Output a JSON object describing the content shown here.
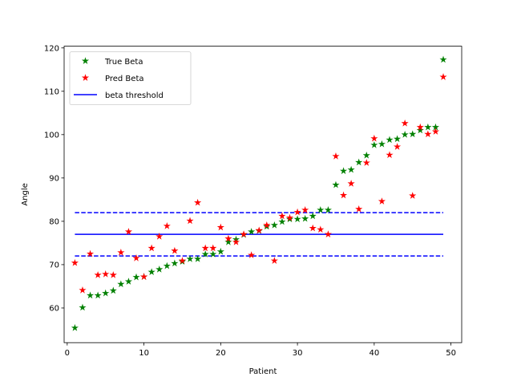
{
  "chart_data": {
    "type": "scatter",
    "title": "",
    "xlabel": "Patient",
    "ylabel": "Angle",
    "xlim": [
      -0.4,
      51.4
    ],
    "ylim": [
      52.0,
      120.4
    ],
    "xticks": [
      0,
      10,
      20,
      30,
      40,
      50
    ],
    "yticks": [
      60,
      70,
      80,
      90,
      100,
      110,
      120
    ],
    "grid": false,
    "legend_position": "top-left",
    "colors": {
      "true_beta": "#008000",
      "pred_beta": "#ff0000",
      "threshold": "#0000ff"
    },
    "x": [
      1,
      2,
      3,
      4,
      5,
      6,
      7,
      8,
      9,
      10,
      11,
      12,
      13,
      14,
      15,
      16,
      17,
      18,
      19,
      20,
      21,
      22,
      23,
      24,
      25,
      26,
      27,
      28,
      29,
      30,
      31,
      32,
      33,
      34,
      35,
      36,
      37,
      38,
      39,
      40,
      41,
      42,
      43,
      44,
      45,
      46,
      47,
      48,
      49
    ],
    "series": [
      {
        "name": "True Beta",
        "marker": "star",
        "values": [
          55.4,
          60.1,
          62.9,
          62.9,
          63.4,
          64.0,
          65.5,
          66.1,
          67.1,
          67.2,
          68.3,
          68.9,
          69.7,
          70.3,
          70.7,
          71.3,
          71.3,
          72.4,
          72.4,
          73.0,
          75.2,
          75.8,
          76.9,
          77.6,
          77.8,
          78.8,
          79.1,
          79.9,
          80.5,
          80.5,
          80.6,
          81.2,
          82.6,
          82.6,
          88.4,
          91.6,
          91.9,
          93.6,
          95.2,
          97.6,
          97.8,
          98.8,
          99.0,
          100.0,
          100.1,
          101.0,
          101.7,
          101.7,
          117.3
        ]
      },
      {
        "name": "Pred Beta",
        "marker": "star",
        "values": [
          70.4,
          64.1,
          72.5,
          67.6,
          67.8,
          67.6,
          72.8,
          77.6,
          71.5,
          67.2,
          73.8,
          76.5,
          78.9,
          73.2,
          70.9,
          80.1,
          84.3,
          73.8,
          73.8,
          78.6,
          76.0,
          75.2,
          77.0,
          72.2,
          77.9,
          79.1,
          70.9,
          81.2,
          80.8,
          82.1,
          82.6,
          78.4,
          78.1,
          77.0,
          95.0,
          86.0,
          88.7,
          82.8,
          93.5,
          99.1,
          84.6,
          95.3,
          97.2,
          102.6,
          85.9,
          101.7,
          100.1,
          100.7,
          113.3
        ]
      }
    ],
    "threshold": {
      "name": "beta threshold",
      "center": 77,
      "upper": 82,
      "lower": 72,
      "x_start": 1,
      "x_end": 49
    }
  }
}
